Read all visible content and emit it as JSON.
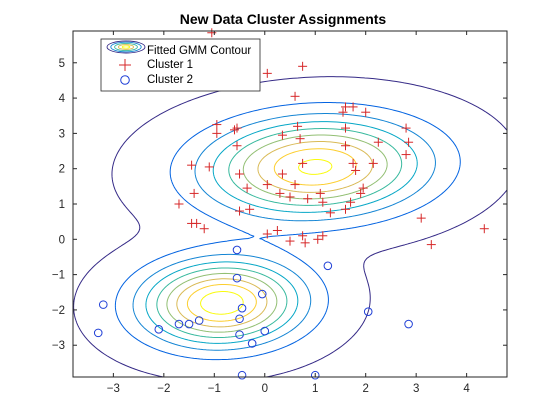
{
  "chart_data": {
    "type": "scatter",
    "title": "New Data Cluster Assignments",
    "xlabel": "",
    "ylabel": "",
    "xlim": [
      -3.8,
      4.8
    ],
    "ylim": [
      -3.9,
      5.9
    ],
    "xticks": [
      -3,
      -2,
      -1,
      0,
      1,
      2,
      3,
      4
    ],
    "yticks": [
      -3,
      -2,
      -1,
      0,
      1,
      2,
      3,
      4,
      5
    ],
    "grid": false,
    "legend_position": "top-left",
    "legend": [
      {
        "label": "Fitted GMM Contour",
        "marker": "contour-ellipses"
      },
      {
        "label": "Cluster 1",
        "marker": "plus",
        "color": "#d62728"
      },
      {
        "label": "Cluster 2",
        "marker": "circle",
        "color": "#1f3fd6"
      }
    ],
    "gmm_components": [
      {
        "weight": 0.6,
        "mean": [
          1.0,
          2.05
        ],
        "sd": [
          1.45,
          0.92
        ],
        "rho": 0.08
      },
      {
        "weight": 0.4,
        "mean": [
          -0.85,
          -1.8
        ],
        "sd": [
          1.05,
          0.8
        ],
        "rho": 0.05
      }
    ],
    "contour_colormap": [
      "#352a87",
      "#0363e1",
      "#1485d4",
      "#06a7c6",
      "#38b99e",
      "#92bf73",
      "#d9ba56",
      "#fcce2e",
      "#f9fb0e"
    ],
    "series": [
      {
        "name": "Cluster 1",
        "marker": "plus",
        "color": "#d62728",
        "points": [
          [
            -1.05,
            5.85
          ],
          [
            0.05,
            4.7
          ],
          [
            0.75,
            4.9
          ],
          [
            0.6,
            4.05
          ],
          [
            1.6,
            3.75
          ],
          [
            1.75,
            3.75
          ],
          [
            1.55,
            3.6
          ],
          [
            2.0,
            3.6
          ],
          [
            1.6,
            3.15
          ],
          [
            2.8,
            3.15
          ],
          [
            2.85,
            2.75
          ],
          [
            2.8,
            2.4
          ],
          [
            2.25,
            2.75
          ],
          [
            2.15,
            2.15
          ],
          [
            1.6,
            2.65
          ],
          [
            1.75,
            2.15
          ],
          [
            1.8,
            1.95
          ],
          [
            -0.95,
            3.25
          ],
          [
            -0.95,
            3.0
          ],
          [
            -0.6,
            3.1
          ],
          [
            -0.55,
            3.15
          ],
          [
            -1.45,
            2.1
          ],
          [
            -1.1,
            2.05
          ],
          [
            -0.55,
            2.65
          ],
          [
            -0.5,
            1.85
          ],
          [
            -0.35,
            1.45
          ],
          [
            -1.4,
            1.3
          ],
          [
            -1.7,
            1.0
          ],
          [
            -1.45,
            0.45
          ],
          [
            -1.35,
            0.45
          ],
          [
            -1.2,
            0.3
          ],
          [
            -0.5,
            0.8
          ],
          [
            -0.3,
            0.85
          ],
          [
            0.35,
            2.95
          ],
          [
            0.65,
            3.2
          ],
          [
            0.7,
            2.85
          ],
          [
            0.75,
            2.15
          ],
          [
            0.35,
            1.85
          ],
          [
            0.6,
            1.55
          ],
          [
            0.5,
            1.2
          ],
          [
            0.05,
            1.55
          ],
          [
            0.3,
            1.3
          ],
          [
            0.85,
            1.15
          ],
          [
            1.1,
            1.3
          ],
          [
            1.15,
            1.05
          ],
          [
            1.3,
            0.75
          ],
          [
            1.6,
            0.85
          ],
          [
            1.7,
            1.05
          ],
          [
            1.95,
            1.45
          ],
          [
            1.9,
            1.3
          ],
          [
            0.05,
            0.15
          ],
          [
            0.25,
            0.25
          ],
          [
            0.5,
            -0.05
          ],
          [
            0.75,
            0.1
          ],
          [
            0.8,
            -0.1
          ],
          [
            1.05,
            0.0
          ],
          [
            1.15,
            0.1
          ],
          [
            3.1,
            0.6
          ],
          [
            3.3,
            -0.15
          ],
          [
            4.35,
            0.3
          ]
        ]
      },
      {
        "name": "Cluster 2",
        "marker": "circle",
        "color": "#1f3fd6",
        "points": [
          [
            -0.55,
            -0.3
          ],
          [
            -0.55,
            -1.1
          ],
          [
            -0.45,
            -1.95
          ],
          [
            -0.5,
            -2.25
          ],
          [
            -0.05,
            -1.55
          ],
          [
            -1.3,
            -2.3
          ],
          [
            -1.5,
            -2.4
          ],
          [
            -1.7,
            -2.4
          ],
          [
            -0.5,
            -2.7
          ],
          [
            -0.25,
            -2.95
          ],
          [
            0.0,
            -2.6
          ],
          [
            -0.45,
            -3.85
          ],
          [
            1.0,
            -3.85
          ],
          [
            1.25,
            -0.75
          ],
          [
            2.05,
            -2.05
          ],
          [
            2.85,
            -2.4
          ],
          [
            -2.1,
            -2.55
          ],
          [
            -3.2,
            -1.85
          ],
          [
            -3.3,
            -2.65
          ]
        ]
      }
    ]
  }
}
